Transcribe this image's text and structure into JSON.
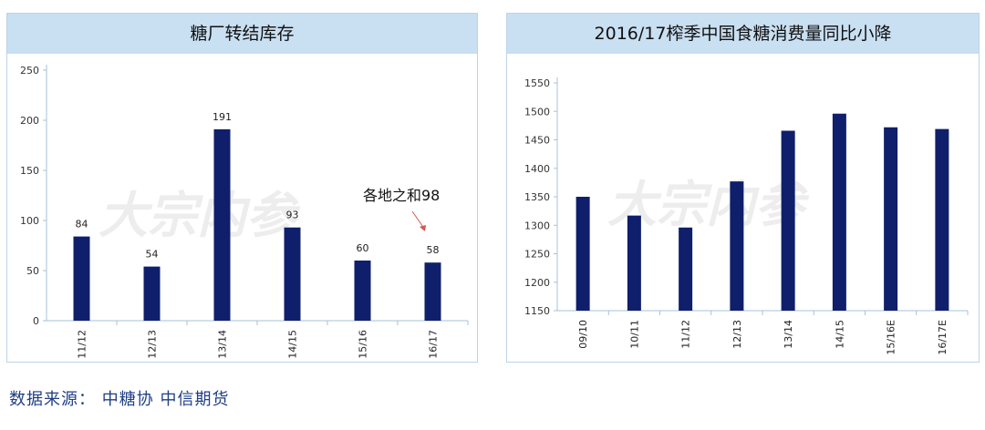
{
  "charts": [
    {
      "type": "bar",
      "title": "糖厂转结库存",
      "categories": [
        "11/12",
        "12/13",
        "13/14",
        "14/15",
        "15/16",
        "16/17"
      ],
      "values": [
        84,
        54,
        191,
        93,
        60,
        58
      ],
      "y_ticks": [
        0,
        50,
        100,
        150,
        200,
        250
      ],
      "ylim": [
        0,
        250
      ],
      "show_value_labels": true,
      "annotation": "各地之和98",
      "bar_color": "#0f1f6b"
    },
    {
      "type": "bar",
      "title": "2016/17榨季中国食糖消费量同比小降",
      "categories": [
        "09/10",
        "10/11",
        "11/12",
        "12/13",
        "13/14",
        "14/15",
        "15/16E",
        "16/17E"
      ],
      "values": [
        1350,
        1317,
        1296,
        1377,
        1466,
        1496,
        1472,
        1469
      ],
      "y_ticks": [
        1150,
        1200,
        1250,
        1300,
        1350,
        1400,
        1450,
        1500,
        1550
      ],
      "ylim": [
        1150,
        1550
      ],
      "show_value_labels": false,
      "bar_color": "#0f1f6b"
    }
  ],
  "chart_data": [
    {
      "type": "bar",
      "title": "糖厂转结库存",
      "categories": [
        "11/12",
        "12/13",
        "13/14",
        "14/15",
        "15/16",
        "16/17"
      ],
      "values": [
        84,
        54,
        191,
        93,
        60,
        58
      ],
      "ylim": [
        0,
        250
      ],
      "annotation": "各地之和98",
      "grid": false
    },
    {
      "type": "bar",
      "title": "2016/17榨季中国食糖消费量同比小降",
      "categories": [
        "09/10",
        "10/11",
        "11/12",
        "12/13",
        "13/14",
        "14/15",
        "15/16E",
        "16/17E"
      ],
      "values": [
        1350,
        1317,
        1296,
        1377,
        1466,
        1496,
        1472,
        1469
      ],
      "ylim": [
        1150,
        1550
      ],
      "grid": false
    }
  ],
  "source_text": "数据来源：  中糖协  中信期货",
  "watermark_text": "大宗内参"
}
